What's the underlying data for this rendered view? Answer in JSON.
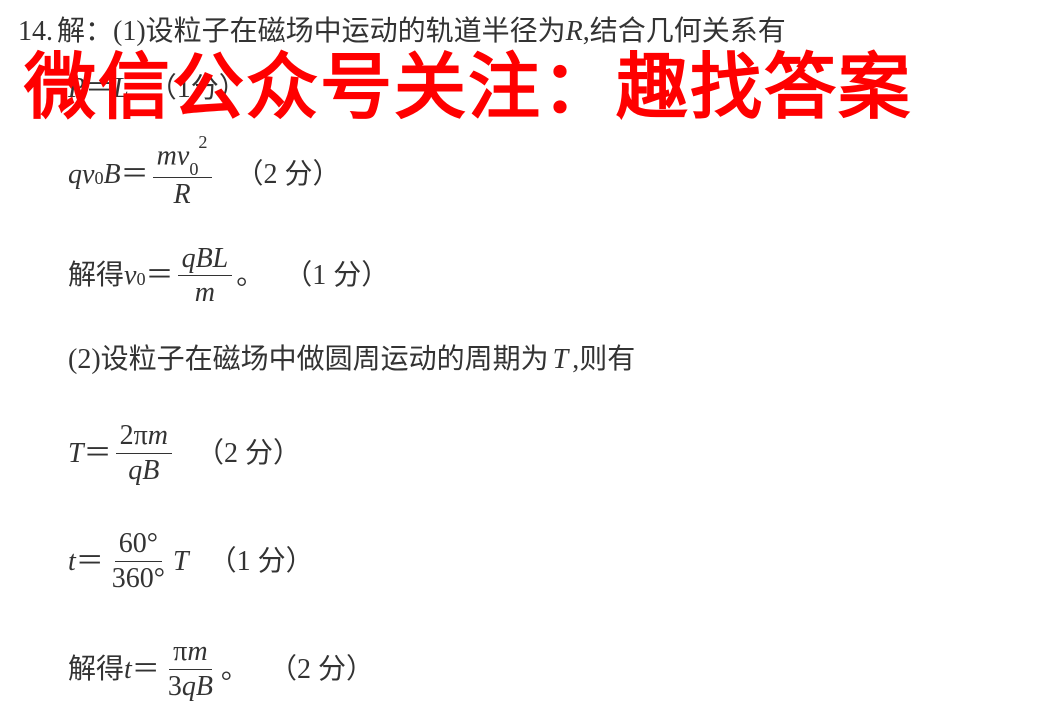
{
  "problem_number": "14.",
  "line1_prefix": "解：(1)设粒子在磁场中运动的轨道半径为",
  "line1_var": "R",
  "line1_suffix": ",结合几何关系有",
  "line2_left": "R",
  "line2_eq": "＝",
  "line2_right": "L",
  "line2_points": "（1分）",
  "line3_q": "q",
  "line3_v": "v",
  "line3_sub0": "0",
  "line3_B": "B",
  "line3_eq": "＝",
  "line3_num_m": "m",
  "line3_num_v": "v",
  "line3_num_sub": "0",
  "line3_num_sup": "2",
  "line3_den": "R",
  "line3_points": "（2 分）",
  "line4_prefix": "解得 ",
  "line4_v": "v",
  "line4_sub": "0",
  "line4_eq": "＝",
  "line4_num_q": "q",
  "line4_num_B": "B",
  "line4_num_L": "L",
  "line4_den": "m",
  "line4_dot": "。",
  "line4_points": "（1 分）",
  "line5_prefix": "(2)设粒子在磁场中做圆周运动的周期为",
  "line5_var": "T",
  "line5_suffix": ",则有",
  "line6_T": "T",
  "line6_eq": "＝",
  "line6_num_2": "2",
  "line6_num_pi": "π",
  "line6_num_m": "m",
  "line6_den_q": "q",
  "line6_den_B": "B",
  "line6_points": "（2 分）",
  "line7_t": "t",
  "line7_eq": "＝",
  "line7_num": "60°",
  "line7_den": "360°",
  "line7_T": "T",
  "line7_points": "（1 分）",
  "line8_prefix": "解得 ",
  "line8_t": "t",
  "line8_eq": "＝",
  "line8_num_pi": "π",
  "line8_num_m": "m",
  "line8_den_3": "3",
  "line8_den_q": "q",
  "line8_den_B": "B",
  "line8_dot": "。",
  "line8_points": "（2 分）",
  "watermark_text": "微信公众号关注：趣找答案",
  "colors": {
    "text": "#333333",
    "watermark": "#ff0000",
    "background": "#ffffff"
  }
}
